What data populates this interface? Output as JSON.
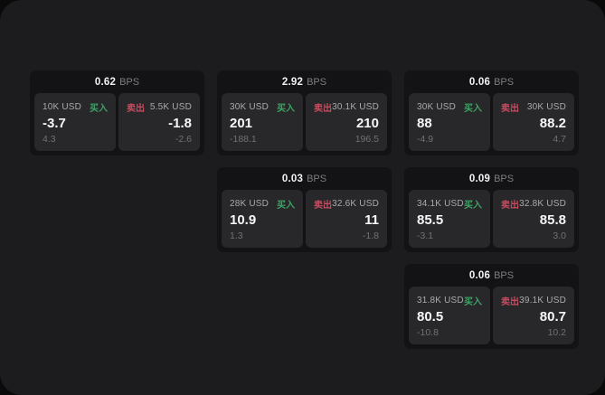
{
  "theme": {
    "page_background": "#0a0a0a",
    "surface": "#1c1c1e",
    "card_background": "#131315",
    "panel_background": "#28282a",
    "buy_color": "#3da265",
    "sell_color": "#c74b60"
  },
  "cards": [
    {
      "bps": "0.62",
      "unit": "BPS",
      "buy": {
        "amount": "10K USD",
        "side": "买入",
        "value": "-3.7",
        "sub": "4.3"
      },
      "sell": {
        "side": "卖出",
        "amount": "5.5K USD",
        "value": "-1.8",
        "sub": "-2.6"
      }
    },
    {
      "bps": "2.92",
      "unit": "BPS",
      "buy": {
        "amount": "30K USD",
        "side": "买入",
        "value": "201",
        "sub": "-188.1"
      },
      "sell": {
        "side": "卖出",
        "amount": "30.1K USD",
        "value": "210",
        "sub": "196.5"
      }
    },
    {
      "bps": "0.06",
      "unit": "BPS",
      "buy": {
        "amount": "30K USD",
        "side": "买入",
        "value": "88",
        "sub": "-4.9"
      },
      "sell": {
        "side": "卖出",
        "amount": "30K USD",
        "value": "88.2",
        "sub": "4.7"
      }
    },
    {
      "bps": "0.03",
      "unit": "BPS",
      "buy": {
        "amount": "28K USD",
        "side": "买入",
        "value": "10.9",
        "sub": "1.3"
      },
      "sell": {
        "side": "卖出",
        "amount": "32.6K USD",
        "value": "11",
        "sub": "-1.8"
      }
    },
    {
      "bps": "0.09",
      "unit": "BPS",
      "buy": {
        "amount": "34.1K USD",
        "side": "买入",
        "value": "85.5",
        "sub": "-3.1"
      },
      "sell": {
        "side": "卖出",
        "amount": "32.8K USD",
        "value": "85.8",
        "sub": "3.0"
      }
    },
    {
      "bps": "0.06",
      "unit": "BPS",
      "buy": {
        "amount": "31.8K USD",
        "side": "买入",
        "value": "80.5",
        "sub": "-10.8"
      },
      "sell": {
        "side": "卖出",
        "amount": "39.1K USD",
        "value": "80.7",
        "sub": "10.2"
      }
    }
  ]
}
